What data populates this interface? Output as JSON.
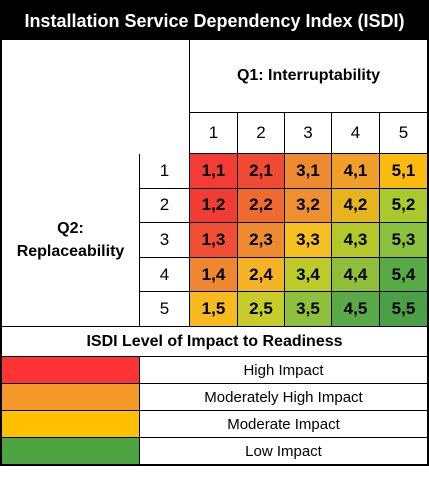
{
  "title": "Installation Service Dependency Index (ISDI)",
  "q1_label": "Q1: Interruptability",
  "q2_label_line1": "Q2:",
  "q2_label_line2": "Replaceability",
  "columns": [
    "1",
    "2",
    "3",
    "4",
    "5"
  ],
  "rows": [
    "1",
    "2",
    "3",
    "4",
    "5"
  ],
  "matrix": [
    [
      "1,1",
      "2,1",
      "3,1",
      "4,1",
      "5,1"
    ],
    [
      "1,2",
      "2,2",
      "3,2",
      "4,2",
      "5,2"
    ],
    [
      "1,3",
      "2,3",
      "3,3",
      "4,3",
      "5,3"
    ],
    [
      "1,4",
      "2,4",
      "3,4",
      "4,4",
      "5,4"
    ],
    [
      "1,5",
      "2,5",
      "3,5",
      "4,5",
      "5,5"
    ]
  ],
  "matrix_colors": [
    [
      "#f23c35",
      "#ef4a33",
      "#ee8b31",
      "#f0a02a",
      "#fbbb10"
    ],
    [
      "#ef3d35",
      "#ef6a30",
      "#ee8f30",
      "#e6b41f",
      "#a9c92c"
    ],
    [
      "#f04e35",
      "#ee8a30",
      "#f5c020",
      "#b4c82b",
      "#8ac13e"
    ],
    [
      "#ef8630",
      "#f3b325",
      "#bdcb2a",
      "#8fbf3a",
      "#58aa45"
    ],
    [
      "#f7bb1d",
      "#c6cc2a",
      "#8ebf3d",
      "#5aa947",
      "#4a9f47"
    ]
  ],
  "legend_title": "ISDI Level of Impact to Readiness",
  "legend": [
    {
      "label": "High Impact",
      "color": "#ff3333"
    },
    {
      "label": "Moderately High Impact",
      "color": "#f4982a"
    },
    {
      "label": "Moderate Impact",
      "color": "#ffc000"
    },
    {
      "label": "Low Impact",
      "color": "#4ca540"
    }
  ]
}
